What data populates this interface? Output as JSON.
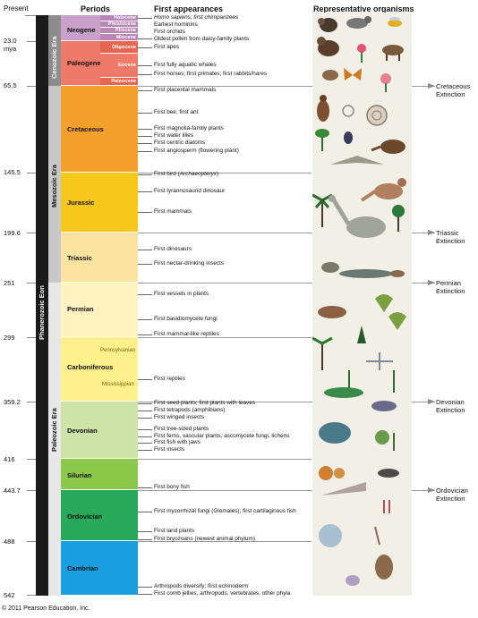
{
  "headers": {
    "periods": "Periods",
    "first_appearances": "First appearances",
    "representative_organisms": "Representative organisms"
  },
  "time_axis": {
    "present": "Present",
    "mya": "mya",
    "ages": [
      "23.0",
      "65.5",
      "145.5",
      "199.6",
      "251",
      "299",
      "359.2",
      "416",
      "443.7",
      "488",
      "542"
    ]
  },
  "eon": "Phanerozoic Eon",
  "eras": {
    "cenozoic": "Cenozoic Era",
    "mesozoic": "Mesozoic Era",
    "paleozoic": "Paleozoic Era"
  },
  "periods": {
    "neogene": "Neogene",
    "paleogene": "Paleogene",
    "cretaceous": "Cretaceous",
    "jurassic": "Jurassic",
    "triassic": "Triassic",
    "permian": "Permian",
    "carboniferous": "Carboniferous",
    "devonian": "Devonian",
    "silurian": "Silurian",
    "ordovician": "Ordovician",
    "cambrian": "Cambrian"
  },
  "epochs": {
    "holocene": "Holocene",
    "pleistocene": "Pleistocene",
    "pliocene": "Pliocene",
    "miocene": "Miocene",
    "oligocene": "Oligocene",
    "eocene": "Eocene",
    "paleocene": "Paleocene"
  },
  "subperiods": {
    "pennsylvanian": "Pennsylvanian",
    "mississippian": "Mississippian"
  },
  "events": [
    "Homo sapiens; first chimpanzees",
    "Earliest hominins",
    "First orchids",
    "Oldest pollen from daisy-family plants",
    "First apes",
    "First fully aquatic whales",
    "First horses; first primates; first rabbits/hares",
    "First placental mammals",
    "First bee; first ant",
    "First magnolia-family plants",
    "First water lilies",
    "First centric diatoms",
    "First angiosperm (flowering plant)",
    "First bird (Archaeopteryx)",
    "First tyrannosaurid dinosaur",
    "First mammals",
    "First dinosaurs",
    "First nectar-drinking insects",
    "First vessels in plants",
    "First basidiomycete fungi",
    "First mammal-like reptiles",
    "First reptiles",
    "First seed plants; first plants with leaves",
    "First tetrapods (amphibians)",
    "First winged insects",
    "First tree-sized plants",
    "First ferns, vascular plants, ascomycete fungi, lichens",
    "First fish with jaws",
    "First insects",
    "First bony fish",
    "First mycorrhizal fungi (Glomales); first cartilaginous fish",
    "First land plants",
    "First bryozoans (newest animal phylum)",
    "Arthropods diversify; first echinoderm",
    "First comb jellies, arthropods, vertebrates, other phyla"
  ],
  "extinctions": {
    "cretaceous": [
      "Cretaceous",
      "Extinction"
    ],
    "triassic": [
      "Triassic",
      "Extinction"
    ],
    "permian": [
      "Permian",
      "Extinction"
    ],
    "devonian": [
      "Devonian",
      "Extinction"
    ],
    "ordovician": [
      "Ordovician",
      "Extinction"
    ]
  },
  "copyright": "© 2011 Pearson Education, Inc.",
  "colors": {
    "neogene": "#c9a0c9",
    "paleogene": "#ef7a6a",
    "cretaceous": "#f5a02c",
    "jurassic": "#f8c71c",
    "triassic": "#fde3a0",
    "permian": "#fef3c0",
    "carboniferous": "#fef08c",
    "devonian": "#cde3a8",
    "silurian": "#8cc84a",
    "ordovician": "#27a85a",
    "cambrian": "#1aa0e0"
  }
}
